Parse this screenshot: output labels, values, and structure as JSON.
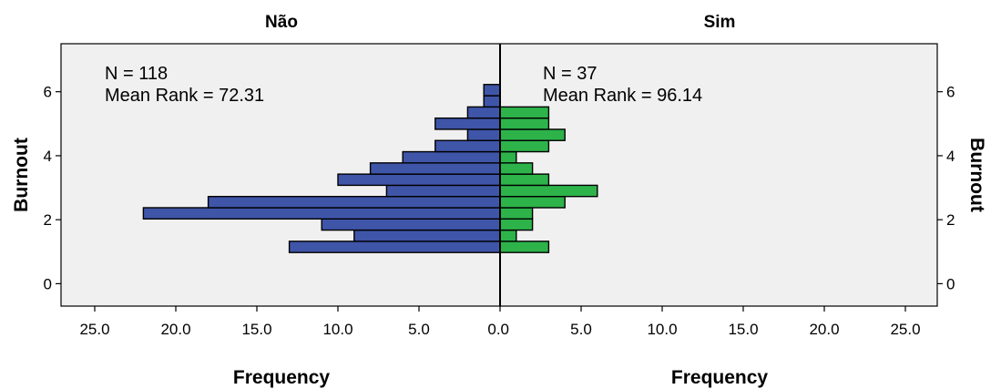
{
  "chart_data": {
    "type": "bar",
    "ylabel": "Burnout",
    "xlabel": "Frequency",
    "y_ticks": [
      "0",
      "2",
      "4",
      "6"
    ],
    "x_ticks": [
      "25.0",
      "20.0",
      "15.0",
      "10.0",
      "5.0",
      "0.0",
      "5.0",
      "10.0",
      "15.0",
      "20.0",
      "25.0"
    ],
    "ylim": [
      -0.7,
      7.5
    ],
    "xlim": [
      0,
      27
    ],
    "bin_width": 0.35,
    "grid": false,
    "panels": [
      {
        "title": "Não",
        "side": "left",
        "n_label": "N = 118",
        "rank_label": "Mean Rank = 72.31",
        "color": "#3F55A8",
        "bins": [
          {
            "y_start": 0.975,
            "frequency": 13
          },
          {
            "y_start": 1.325,
            "frequency": 9
          },
          {
            "y_start": 1.675,
            "frequency": 11
          },
          {
            "y_start": 2.025,
            "frequency": 22
          },
          {
            "y_start": 2.375,
            "frequency": 18
          },
          {
            "y_start": 2.725,
            "frequency": 7
          },
          {
            "y_start": 3.075,
            "frequency": 10
          },
          {
            "y_start": 3.425,
            "frequency": 8
          },
          {
            "y_start": 3.775,
            "frequency": 6
          },
          {
            "y_start": 4.125,
            "frequency": 4
          },
          {
            "y_start": 4.475,
            "frequency": 2
          },
          {
            "y_start": 4.825,
            "frequency": 4
          },
          {
            "y_start": 5.175,
            "frequency": 2
          },
          {
            "y_start": 5.525,
            "frequency": 1
          },
          {
            "y_start": 5.875,
            "frequency": 1
          }
        ]
      },
      {
        "title": "Sim",
        "side": "right",
        "n_label": "N = 37",
        "rank_label": "Mean Rank = 96.14",
        "color": "#2DB34A",
        "bins": [
          {
            "y_start": 0.975,
            "frequency": 3
          },
          {
            "y_start": 1.325,
            "frequency": 1
          },
          {
            "y_start": 1.675,
            "frequency": 2
          },
          {
            "y_start": 2.025,
            "frequency": 2
          },
          {
            "y_start": 2.375,
            "frequency": 4
          },
          {
            "y_start": 2.725,
            "frequency": 6
          },
          {
            "y_start": 3.075,
            "frequency": 3
          },
          {
            "y_start": 3.425,
            "frequency": 2
          },
          {
            "y_start": 3.775,
            "frequency": 1
          },
          {
            "y_start": 4.125,
            "frequency": 3
          },
          {
            "y_start": 4.475,
            "frequency": 4
          },
          {
            "y_start": 4.825,
            "frequency": 3
          },
          {
            "y_start": 5.175,
            "frequency": 3
          }
        ]
      }
    ]
  }
}
